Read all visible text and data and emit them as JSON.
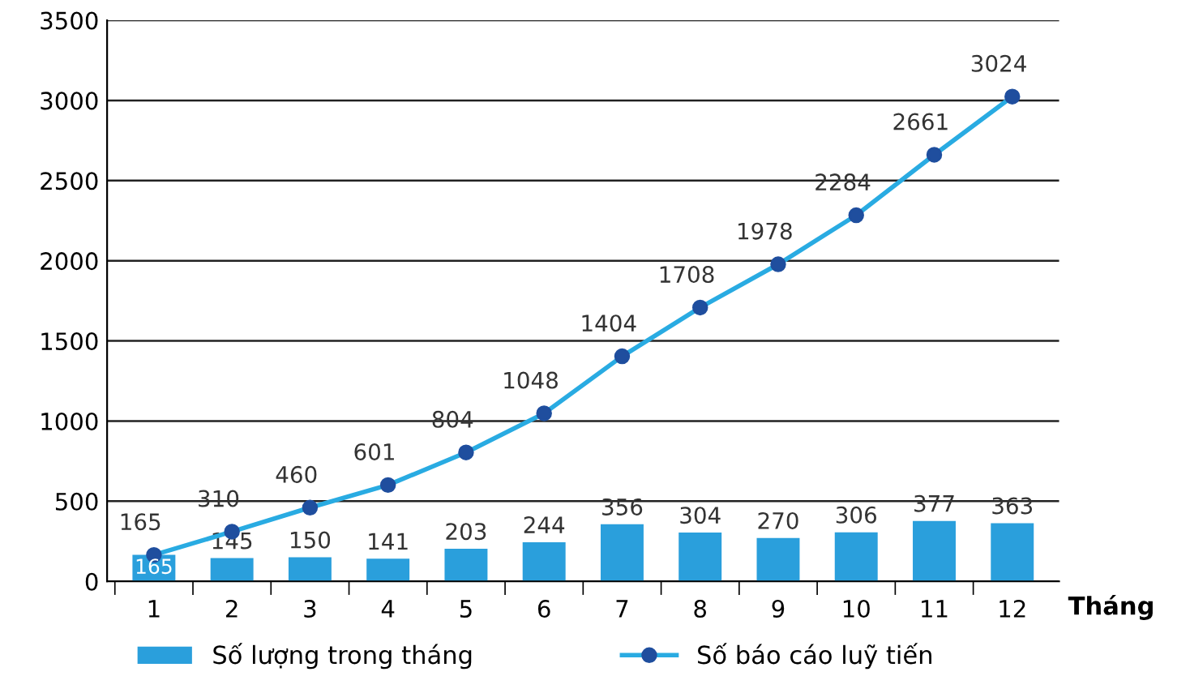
{
  "chart_data": {
    "type": "bar",
    "xlabel": "Tháng",
    "categories": [
      "1",
      "2",
      "3",
      "4",
      "5",
      "6",
      "7",
      "8",
      "9",
      "10",
      "11",
      "12"
    ],
    "series": [
      {
        "name": "Số lượng trong tháng",
        "color": "#2a9fdc",
        "values": [
          165,
          145,
          150,
          141,
          203,
          244,
          356,
          304,
          270,
          306,
          377,
          363
        ]
      },
      {
        "name": "Số báo cáo luỹ tiến",
        "type": "line",
        "color": "#29abe2",
        "marker": "circle",
        "values": [
          165,
          310,
          460,
          601,
          804,
          1048,
          1404,
          1708,
          1978,
          2284,
          2661,
          3024
        ]
      }
    ],
    "ylim": [
      0,
      3500
    ],
    "yticks": [
      0,
      500,
      1000,
      1500,
      2000,
      2500,
      3000,
      3500
    ],
    "grid": "y",
    "legend": "bottom",
    "data_labels": true
  }
}
